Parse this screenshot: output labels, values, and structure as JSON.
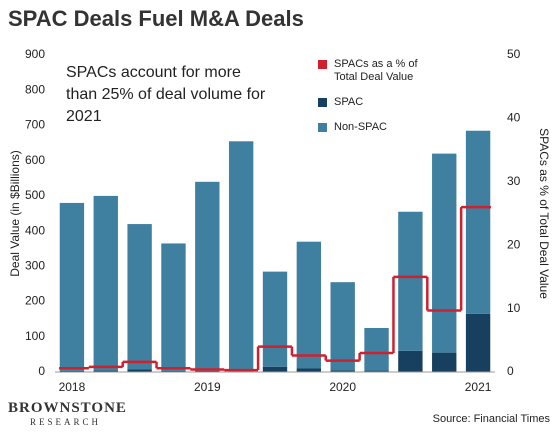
{
  "chart_data": {
    "type": "bar",
    "title": "SPAC Deals Fuel M&A Deals",
    "annotation": "SPACs account for more than 25% of deal volume for 2021",
    "y_label": "Deal Value (in $Billions)",
    "y2_label": "SPACs as % of Total Deal Value",
    "categories": [
      "2018",
      null,
      null,
      null,
      "2019",
      null,
      null,
      null,
      "2020",
      null,
      null,
      null,
      "2021"
    ],
    "stacked": true,
    "series": [
      {
        "name": "SPAC",
        "color": "#173f5f",
        "values": [
          3,
          4,
          8,
          3,
          3,
          2,
          15,
          10,
          5,
          4,
          60,
          55,
          165
        ]
      },
      {
        "name": "Non-SPAC",
        "color": "#3f7f9f",
        "values": [
          477,
          496,
          412,
          362,
          537,
          653,
          270,
          360,
          250,
          121,
          395,
          565,
          520
        ]
      },
      {
        "name": "SPACs as a % of Total Deal Value",
        "color": "#d0202e",
        "type": "step",
        "axis": "y2",
        "values": [
          0.6,
          0.8,
          1.6,
          0.6,
          0.4,
          0.3,
          4,
          2.6,
          1.8,
          3,
          15,
          9.7,
          26
        ]
      }
    ],
    "ylim": [
      0,
      900
    ],
    "yticks": [
      0,
      100,
      200,
      300,
      400,
      500,
      600,
      700,
      800,
      900
    ],
    "y2lim": [
      0,
      50
    ],
    "y2ticks": [
      0,
      10,
      20,
      30,
      40,
      50
    ],
    "source": "Source: Financial Times",
    "logo": {
      "name": "BROWNSTONE",
      "sub": "RESEARCH"
    }
  }
}
